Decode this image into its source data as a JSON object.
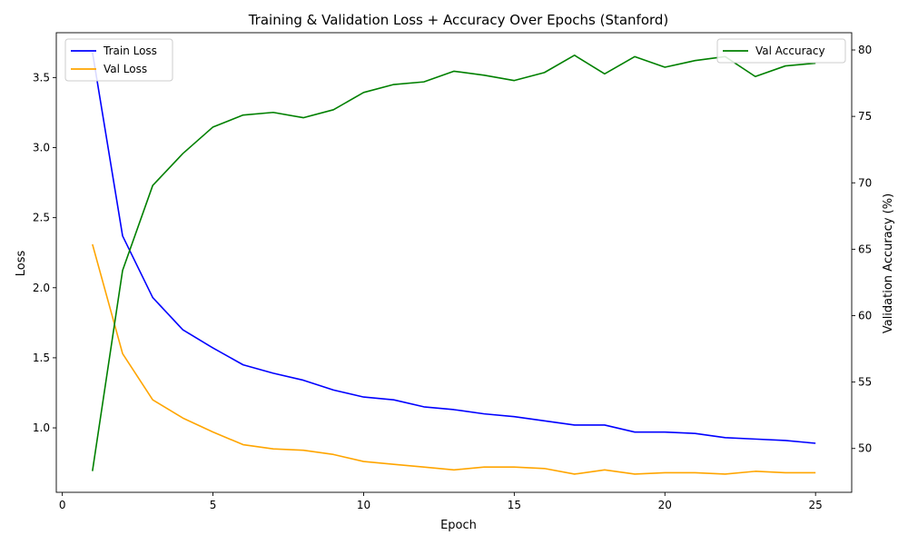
{
  "chart_data": {
    "type": "line",
    "title": "Training & Validation Loss + Accuracy Over Epochs (Stanford)",
    "xlabel": "Epoch",
    "ylabel_left": "Loss",
    "ylabel_right": "Validation Accuracy (%)",
    "x": [
      1,
      2,
      3,
      4,
      5,
      6,
      7,
      8,
      9,
      10,
      11,
      12,
      13,
      14,
      15,
      16,
      17,
      18,
      19,
      20,
      21,
      22,
      23,
      24,
      25
    ],
    "xlim": [
      -0.2,
      26.2
    ],
    "ylim_left": [
      0.54,
      3.82
    ],
    "ylim_right": [
      46.7,
      81.3
    ],
    "xticks": [
      0,
      5,
      10,
      15,
      20,
      25
    ],
    "yticks_left": [
      1.0,
      1.5,
      2.0,
      2.5,
      3.0,
      3.5
    ],
    "yticks_right": [
      50,
      55,
      60,
      65,
      70,
      75,
      80
    ],
    "grid": false,
    "series": [
      {
        "name": "Train Loss",
        "axis": "left",
        "color": "#0000ff",
        "values": [
          3.68,
          2.37,
          1.93,
          1.7,
          1.57,
          1.45,
          1.39,
          1.34,
          1.27,
          1.22,
          1.2,
          1.15,
          1.13,
          1.1,
          1.08,
          1.05,
          1.02,
          1.02,
          0.97,
          0.97,
          0.96,
          0.93,
          0.92,
          0.91,
          0.89
        ]
      },
      {
        "name": "Val Loss",
        "axis": "left",
        "color": "#ffa500",
        "values": [
          2.31,
          1.53,
          1.2,
          1.07,
          0.97,
          0.88,
          0.85,
          0.84,
          0.81,
          0.76,
          0.74,
          0.72,
          0.7,
          0.72,
          0.72,
          0.71,
          0.67,
          0.7,
          0.67,
          0.68,
          0.68,
          0.67,
          0.69,
          0.68,
          0.68
        ]
      },
      {
        "name": "Val Accuracy",
        "axis": "right",
        "color": "#008000",
        "values": [
          48.3,
          63.4,
          69.8,
          72.2,
          74.2,
          75.1,
          75.3,
          74.9,
          75.5,
          76.8,
          77.4,
          77.6,
          78.4,
          78.1,
          77.7,
          78.3,
          79.6,
          78.2,
          79.5,
          78.7,
          79.2,
          79.5,
          78.0,
          78.8,
          79.0
        ]
      }
    ],
    "legend_left": {
      "placement": "upper-left",
      "entries": [
        "Train Loss",
        "Val Loss"
      ]
    },
    "legend_right": {
      "placement": "upper-right",
      "entries": [
        "Val Accuracy"
      ]
    }
  }
}
